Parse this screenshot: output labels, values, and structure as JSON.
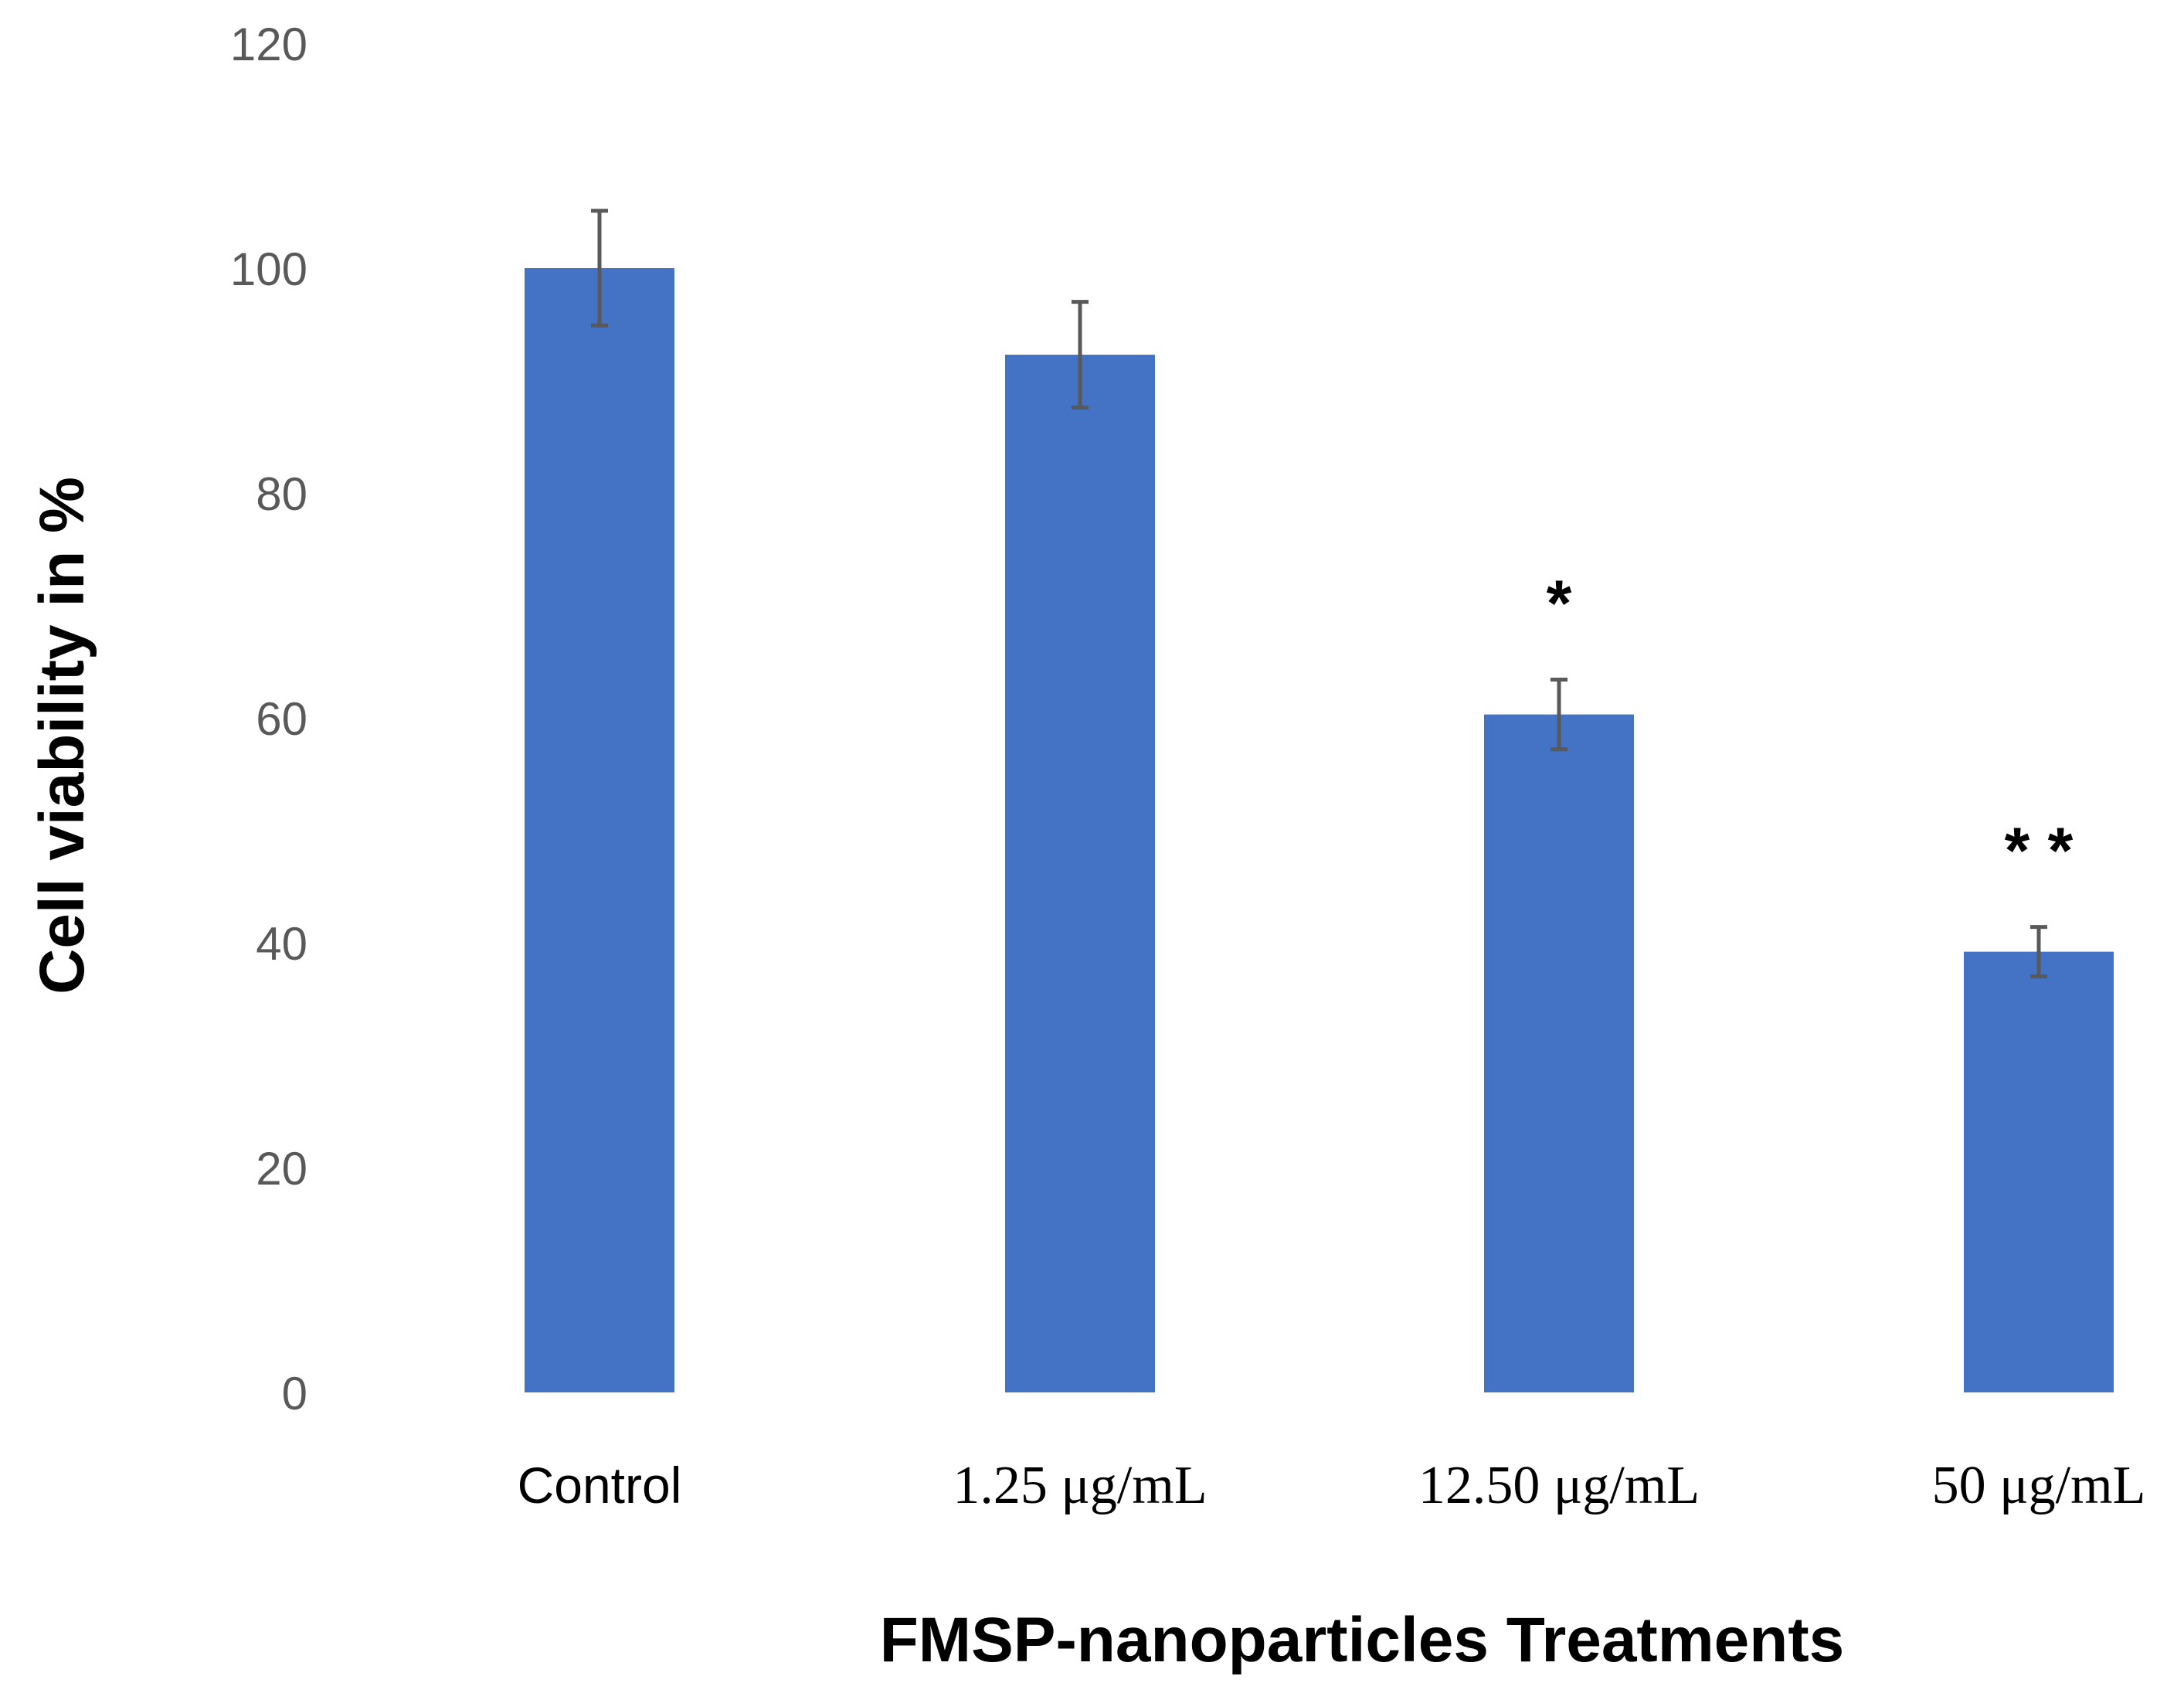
{
  "chart_data": {
    "type": "bar",
    "title": "",
    "xlabel": "FMSP-nanoparticles Treatments",
    "ylabel": "Cell viability in %",
    "ylim": [
      0,
      120
    ],
    "yticks": [
      "0",
      "20",
      "40",
      "60",
      "80",
      "100",
      "120"
    ],
    "grid": false,
    "categories": [
      "Control",
      "1.25 μg/mL",
      "12.50 μg/mL",
      "50 μg/mL"
    ],
    "values": [
      100,
      92.3,
      60.3,
      39.2
    ],
    "error": [
      5.1,
      4.7,
      3.1,
      2.2
    ],
    "significance": [
      "",
      "",
      "*",
      "* *"
    ],
    "bar_color": "#4472c4",
    "error_color": "#595959"
  }
}
